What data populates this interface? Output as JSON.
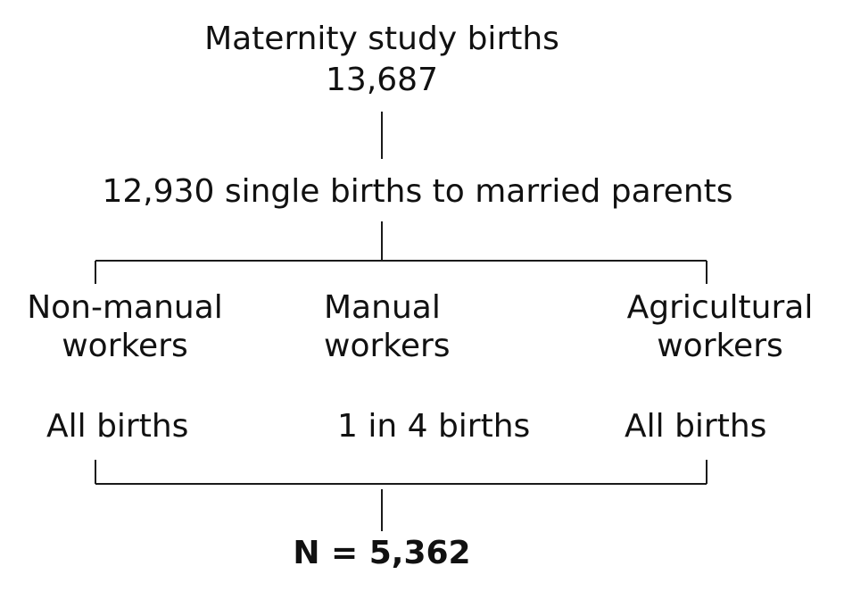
{
  "top": {
    "title": "Maternity study births",
    "count": "13,687"
  },
  "level2": {
    "label": "12,930 single births to married parents"
  },
  "groups": [
    {
      "line1": "Non-manual",
      "line2": "workers",
      "sampling": "All births"
    },
    {
      "line1": "Manual",
      "line2": "workers",
      "sampling": "1 in 4 births"
    },
    {
      "line1": "Agricultural",
      "line2": "workers",
      "sampling": "All births"
    }
  ],
  "total": {
    "label": "N = 5,362"
  }
}
